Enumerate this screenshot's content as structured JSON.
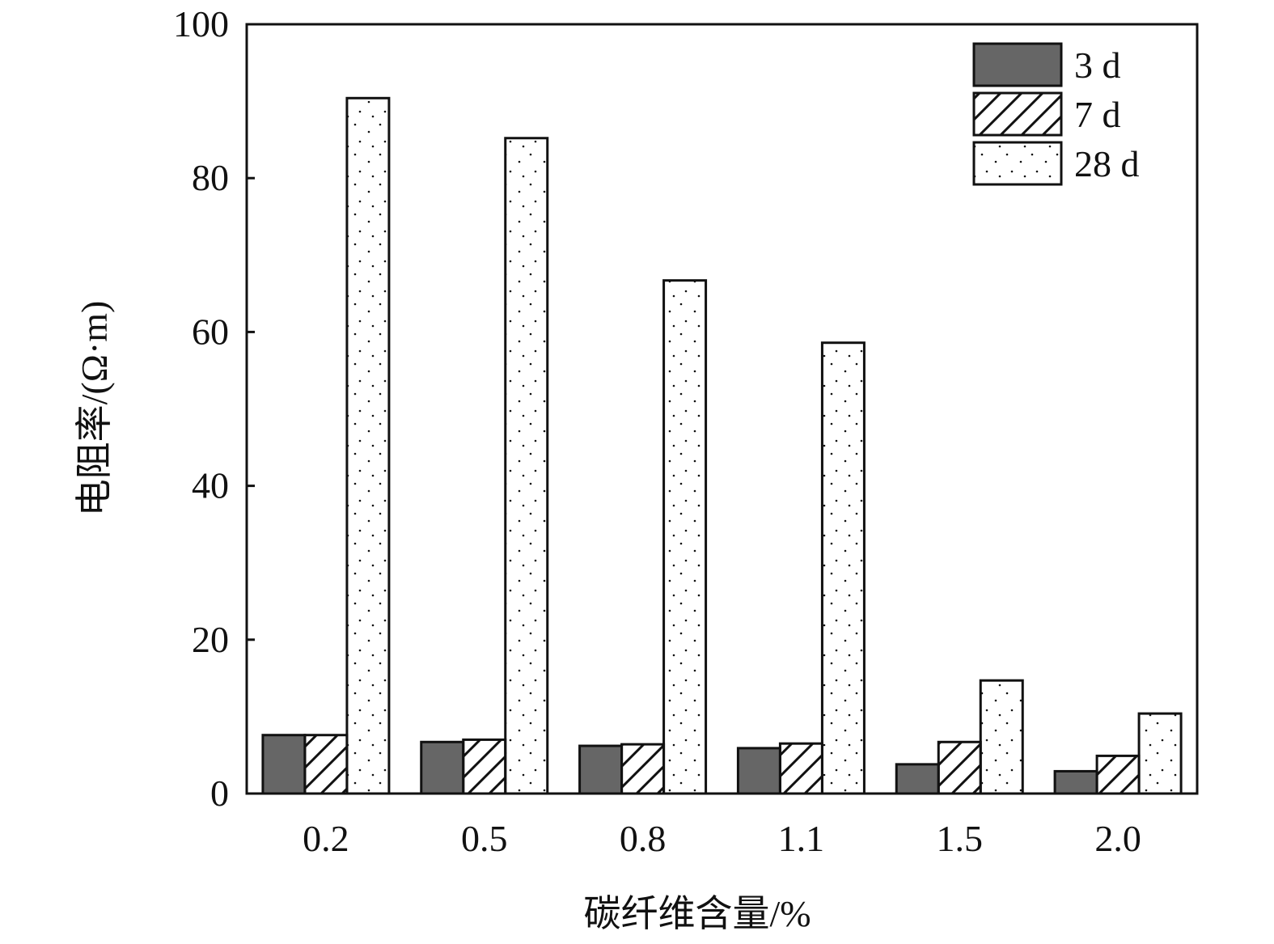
{
  "chart_data": {
    "type": "bar",
    "title": "",
    "xlabel": "碳纤维含量/%",
    "ylabel": "电阻率/(Ω·m)",
    "categories": [
      "0.2",
      "0.5",
      "0.8",
      "1.1",
      "1.5",
      "2.0"
    ],
    "ylim": [
      0,
      100
    ],
    "yticks": [
      "0",
      "20",
      "40",
      "60",
      "80",
      "100"
    ],
    "grid": false,
    "legend_position": "top-right",
    "series": [
      {
        "name": "3 d",
        "pattern": "solid",
        "color": "#666666",
        "values": [
          7.6,
          6.7,
          6.2,
          5.9,
          3.8,
          2.9
        ]
      },
      {
        "name": "7 d",
        "pattern": "hatch",
        "color": "#ffffff",
        "values": [
          7.6,
          7.0,
          6.4,
          6.5,
          6.7,
          4.9
        ]
      },
      {
        "name": "28 d",
        "pattern": "dots",
        "color": "#ffffff",
        "values": [
          90.4,
          85.2,
          66.7,
          58.6,
          14.7,
          10.4
        ]
      }
    ]
  }
}
